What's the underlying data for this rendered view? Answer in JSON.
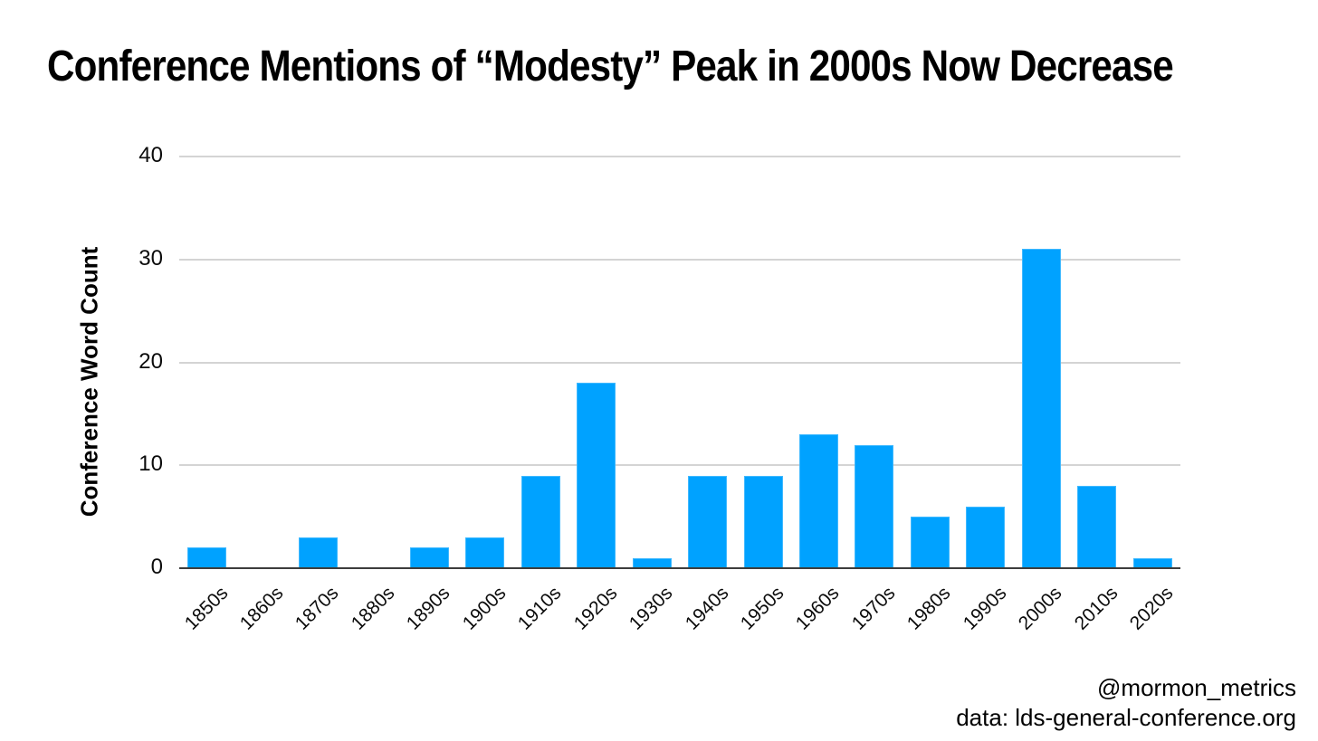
{
  "chart_data": {
    "type": "bar",
    "title": "Conference Mentions of “Modesty” Peak in 2000s Now Decrease",
    "categories": [
      "1850s",
      "1860s",
      "1870s",
      "1880s",
      "1890s",
      "1900s",
      "1910s",
      "1920s",
      "1930s",
      "1940s",
      "1950s",
      "1960s",
      "1970s",
      "1980s",
      "1990s",
      "2000s",
      "2010s",
      "2020s"
    ],
    "values": [
      2,
      0,
      3,
      0,
      2,
      3,
      9,
      18,
      1,
      9,
      9,
      13,
      12,
      5,
      6,
      31,
      8,
      1
    ],
    "xlabel": "",
    "ylabel": "Conference Word Count",
    "ylim": [
      0,
      40
    ],
    "yticks": [
      0,
      10,
      20,
      30,
      40
    ],
    "grid": true,
    "legend_position": "none",
    "x_tick_rotation_deg": 45,
    "bar_color": "#00a2ff",
    "gridline_color": "#d4d4d4",
    "axis_line_color": "#3d3d3d",
    "text_color": "#000000"
  },
  "footer": {
    "handle": "@mormon_metrics",
    "source": "data: lds-general-conference.org"
  }
}
